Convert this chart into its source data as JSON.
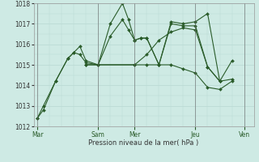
{
  "xlabel": "Pression niveau de la mer( hPa )",
  "ylim": [
    1012,
    1018
  ],
  "yticks": [
    1012,
    1013,
    1014,
    1015,
    1016,
    1017,
    1018
  ],
  "background_color": "#ceeae4",
  "grid_color": "#b8d8d2",
  "line_color": "#2a5c2a",
  "day_labels": [
    "Mar",
    "Sam",
    "Mer",
    "Jeu",
    "Ven"
  ],
  "day_positions": [
    0,
    5,
    8,
    13,
    17
  ],
  "xlim": [
    -0.3,
    17.8
  ],
  "series": [
    {
      "x": [
        0,
        0.5,
        1.5,
        2.5,
        3,
        3.5,
        4,
        5,
        6,
        7,
        7.5,
        8,
        8.5,
        9,
        10,
        11,
        12,
        13,
        14,
        15,
        16,
        17
      ],
      "y": [
        1012.4,
        1012.8,
        1014.2,
        1015.3,
        1015.6,
        1015.9,
        1015.2,
        1015.0,
        1017.0,
        1018.0,
        1017.2,
        1016.2,
        1016.3,
        1016.3,
        1015.0,
        1017.1,
        1017.0,
        1017.1,
        1017.5,
        1014.2,
        null,
        null
      ]
    },
    {
      "x": [
        0,
        0.5,
        1.5,
        2.5,
        3,
        3.5,
        4,
        5,
        6,
        7,
        7.5,
        8,
        8.5,
        9,
        10,
        11,
        12,
        13,
        14,
        15,
        16,
        17
      ],
      "y": [
        1012.4,
        1013.0,
        1014.2,
        1015.3,
        1015.6,
        1015.5,
        1015.1,
        1015.0,
        1016.4,
        1017.2,
        1016.7,
        1016.2,
        1016.3,
        1016.3,
        1015.0,
        1017.0,
        1016.9,
        1016.9,
        1014.9,
        1014.2,
        1015.2,
        null
      ]
    },
    {
      "x": [
        4,
        5,
        8,
        9,
        10,
        11,
        12,
        13,
        14,
        15,
        16,
        17
      ],
      "y": [
        1015.0,
        1015.0,
        1015.0,
        1015.5,
        1016.2,
        1016.6,
        1016.8,
        1016.7,
        1014.9,
        1014.2,
        1014.3,
        null
      ]
    },
    {
      "x": [
        4,
        5,
        8,
        9,
        10,
        11,
        12,
        13,
        14,
        15,
        16,
        17
      ],
      "y": [
        1015.0,
        1015.0,
        1015.0,
        1015.0,
        1015.0,
        1015.0,
        1014.8,
        1014.6,
        1013.9,
        1013.8,
        1014.2,
        null
      ]
    }
  ]
}
